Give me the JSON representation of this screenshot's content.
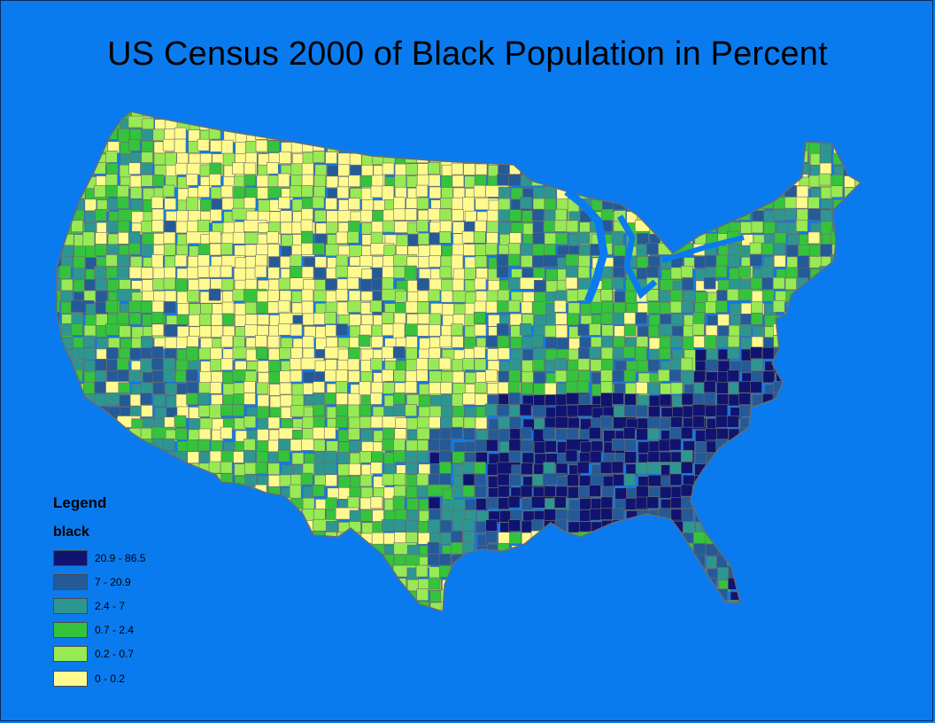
{
  "map": {
    "title": "US Census 2000 of Black Population in Percent",
    "background_color": "#0a7bef",
    "border_color": "#6b6b6b"
  },
  "legend": {
    "title": "Legend",
    "layer_name": "black",
    "classes": [
      {
        "label": "20.9 - 86.5",
        "color": "#101470"
      },
      {
        "label": "7 - 20.9",
        "color": "#245a98"
      },
      {
        "label": "2.4 - 7",
        "color": "#2e9690"
      },
      {
        "label": "0.7 - 2.4",
        "color": "#35c23d"
      },
      {
        "label": "0.2 - 0.7",
        "color": "#97ea53"
      },
      {
        "label": "0 - 0.2",
        "color": "#fffa8f"
      }
    ]
  }
}
